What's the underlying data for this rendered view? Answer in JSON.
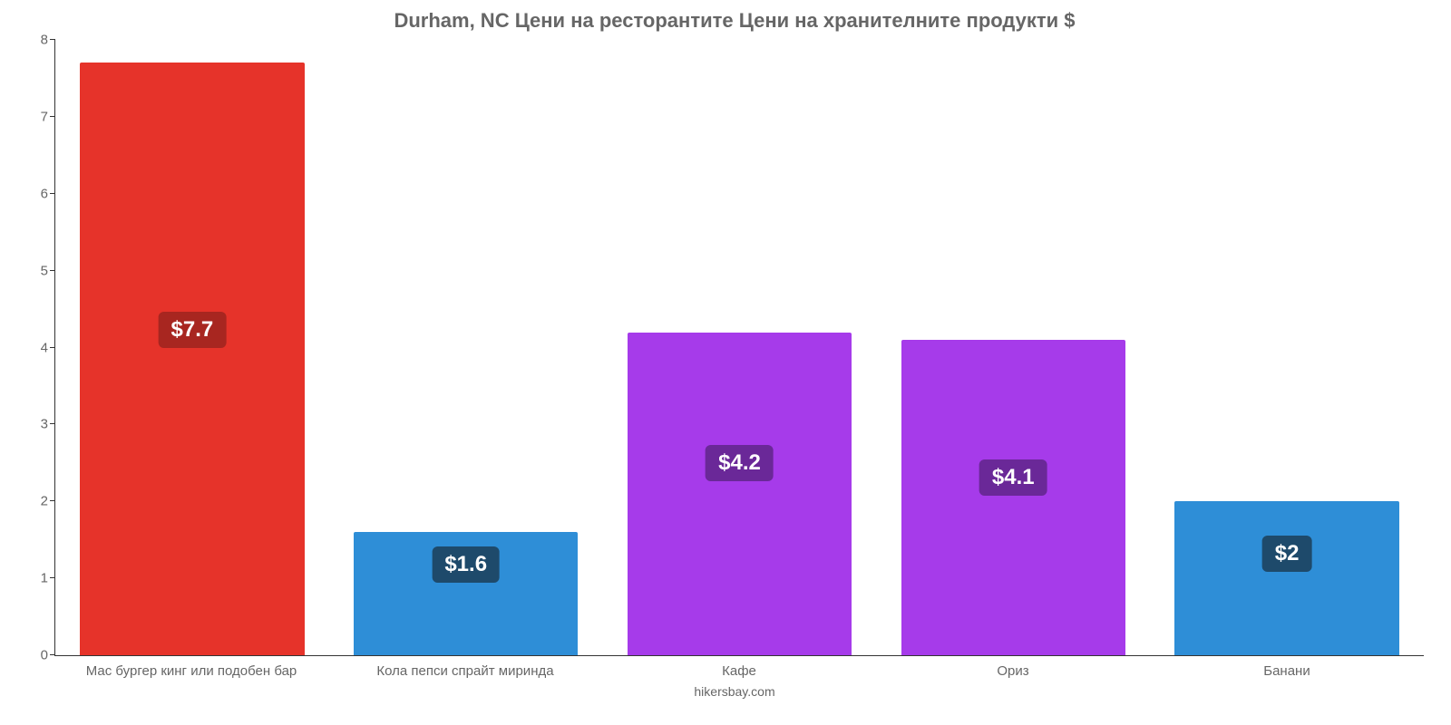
{
  "chart": {
    "type": "bar",
    "title": "Durham, NC Цени на ресторантите Цени на хранителните продукти $",
    "title_color": "#666666",
    "title_fontsize": 22,
    "background_color": "#ffffff",
    "axis_color": "#333333",
    "tick_label_color": "#666666",
    "tick_label_fontsize": 15,
    "ylim": [
      0,
      8
    ],
    "ytick_step": 1,
    "yticks": [
      "0",
      "1",
      "2",
      "3",
      "4",
      "5",
      "6",
      "7",
      "8"
    ],
    "bar_width_ratio": 0.82,
    "value_label_fontsize": 24,
    "value_label_text_color": "#ffffff",
    "categories": [
      {
        "label": "Мас бургер кинг или подобен бар",
        "value": 7.7,
        "display_value": "$7.7",
        "bar_color": "#e6332a",
        "badge_color": "#a82620",
        "badge_top_pct": 42
      },
      {
        "label": "Кола пепси спрайт миринда",
        "value": 1.6,
        "display_value": "$1.6",
        "bar_color": "#2e8ed7",
        "badge_color": "#1e4a6b",
        "badge_top_pct": 12
      },
      {
        "label": "Кафе",
        "value": 4.2,
        "display_value": "$4.2",
        "bar_color": "#a63bea",
        "badge_color": "#6a2898",
        "badge_top_pct": 35
      },
      {
        "label": "Ориз",
        "value": 4.1,
        "display_value": "$4.1",
        "bar_color": "#a63bea",
        "badge_color": "#6a2898",
        "badge_top_pct": 38
      },
      {
        "label": "Банани",
        "value": 2.0,
        "display_value": "$2",
        "bar_color": "#2e8ed7",
        "badge_color": "#1e4a6b",
        "badge_top_pct": 22
      }
    ],
    "footer_credit": "hikersbay.com",
    "footer_color": "#666666",
    "footer_fontsize": 14
  }
}
